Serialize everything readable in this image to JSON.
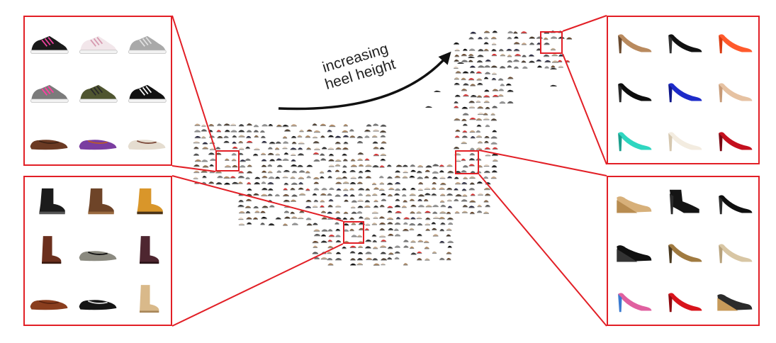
{
  "annotation": {
    "line1": "increasing",
    "line2": "heel height"
  },
  "colors": {
    "highlight": "#e21f26",
    "arrow": "#111111"
  },
  "panels": [
    {
      "id": "top-left",
      "items": [
        "athletic-sneaker-icon",
        "boat-shoe-icon",
        "canvas-sneaker-icon",
        "skate-sneaker-icon",
        "trail-shoe-icon",
        "low-top-sneaker-icon",
        "loafer-icon",
        "flip-flop-icon",
        "slip-on-icon"
      ]
    },
    {
      "id": "bottom-left",
      "items": [
        "riding-boot-icon",
        "cowboy-boot-icon",
        "work-boot-icon",
        "tall-boot-icon",
        "ballet-flat-icon",
        "knee-boot-icon",
        "penny-loafer-icon",
        "sandal-icon",
        "western-boot-icon"
      ]
    },
    {
      "id": "top-right",
      "items": [
        "peep-toe-pump-icon",
        "platform-pump-icon",
        "ankle-strap-heel-icon",
        "black-pump-icon",
        "blue-pump-icon",
        "nude-pump-icon",
        "teal-pump-icon",
        "white-pump-icon",
        "red-pump-icon"
      ]
    },
    {
      "id": "bottom-right",
      "items": [
        "cork-wedge-icon",
        "ankle-bootie-icon",
        "black-pointed-heel-icon",
        "wedge-clog-icon",
        "snakeskin-heel-icon",
        "beige-heel-icon",
        "floral-heel-icon",
        "red-tstrap-heel-icon",
        "wedge-sandal-icon"
      ]
    }
  ]
}
